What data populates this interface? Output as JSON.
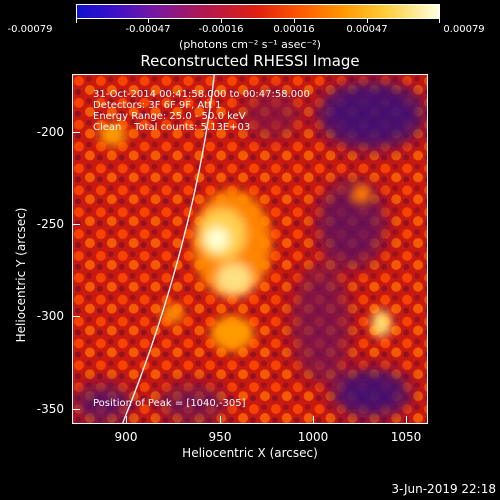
{
  "colorbar": {
    "ticks": [
      "-0.00079",
      "-0.00047",
      "-0.00016",
      "0.00016",
      "0.00047",
      "0.00079"
    ],
    "unit": "(photons cm⁻² s⁻¹ asec⁻²)"
  },
  "title": "Reconstructed RHESSI Image",
  "info": {
    "line1": "31-Oct-2014 00:41:58.000 to 00:47:58.000",
    "line2": "Detectors: 3F 6F 9F, Att 1",
    "line3": "Energy Range: 25.0 - 50.0 keV",
    "line4": "Clean    Total counts: 5.13E+03",
    "peak": "Position of Peak = [1040,-305]"
  },
  "axes": {
    "xlabel": "Heliocentric X (arcsec)",
    "ylabel": "Heliocentric Y (arcsec)",
    "xticks": [
      "900",
      "950",
      "1000",
      "1050"
    ],
    "yticks": [
      "-200",
      "-250",
      "-300",
      "-350"
    ]
  },
  "footer": {
    "date": "3-Jun-2019 22:18"
  },
  "colors": {
    "background": "#000000",
    "limb": "#ffffff",
    "colormap": "std-gamma-II"
  }
}
